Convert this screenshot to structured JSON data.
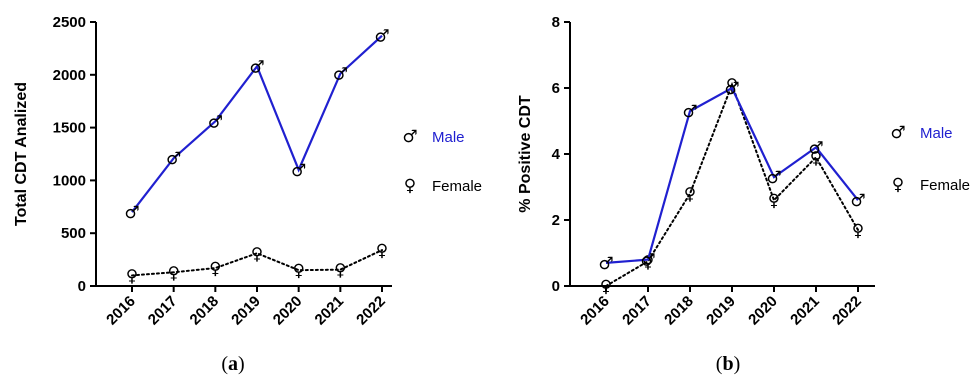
{
  "colors": {
    "male": "#2020d0",
    "female": "#000000",
    "axis": "#000000"
  },
  "legend": {
    "male": {
      "symbol": "♂",
      "label": "Male"
    },
    "female": {
      "symbol": "♀",
      "label": "Female"
    }
  },
  "chart_data": [
    {
      "type": "line",
      "panel": "a",
      "panel_label_open": "(",
      "panel_label_close": ")",
      "ylabel": "Total CDT Analized",
      "xlabel": "",
      "categories": [
        "2016",
        "2017",
        "2018",
        "2019",
        "2020",
        "2021",
        "2022"
      ],
      "ylim": [
        0,
        2500
      ],
      "yticks": [
        0,
        500,
        1000,
        1500,
        2000,
        2500
      ],
      "series": [
        {
          "name": "Male",
          "key": "male",
          "symbol": "♂",
          "style": "solid",
          "values": [
            700,
            1210,
            1560,
            2080,
            1100,
            2010,
            2370
          ]
        },
        {
          "name": "Female",
          "key": "female",
          "symbol": "♀",
          "style": "dotted",
          "values": [
            100,
            130,
            170,
            310,
            150,
            155,
            340
          ]
        }
      ],
      "legend_position": "right"
    },
    {
      "type": "line",
      "panel": "b",
      "panel_label_open": "(",
      "panel_label_close": ")",
      "ylabel": "% Positive CDT",
      "xlabel": "",
      "categories": [
        "2016",
        "2017",
        "2018",
        "2019",
        "2020",
        "2021",
        "2022"
      ],
      "ylim": [
        0,
        8
      ],
      "yticks": [
        0,
        2,
        4,
        6,
        8
      ],
      "series": [
        {
          "name": "Male",
          "key": "male",
          "symbol": "♂",
          "style": "solid",
          "values": [
            0.7,
            0.8,
            5.3,
            6.0,
            3.3,
            4.2,
            2.6
          ]
        },
        {
          "name": "Female",
          "key": "female",
          "symbol": "♀",
          "style": "dotted",
          "values": [
            0.0,
            0.75,
            2.8,
            6.1,
            2.6,
            3.9,
            1.7
          ]
        }
      ],
      "legend_position": "right"
    }
  ]
}
